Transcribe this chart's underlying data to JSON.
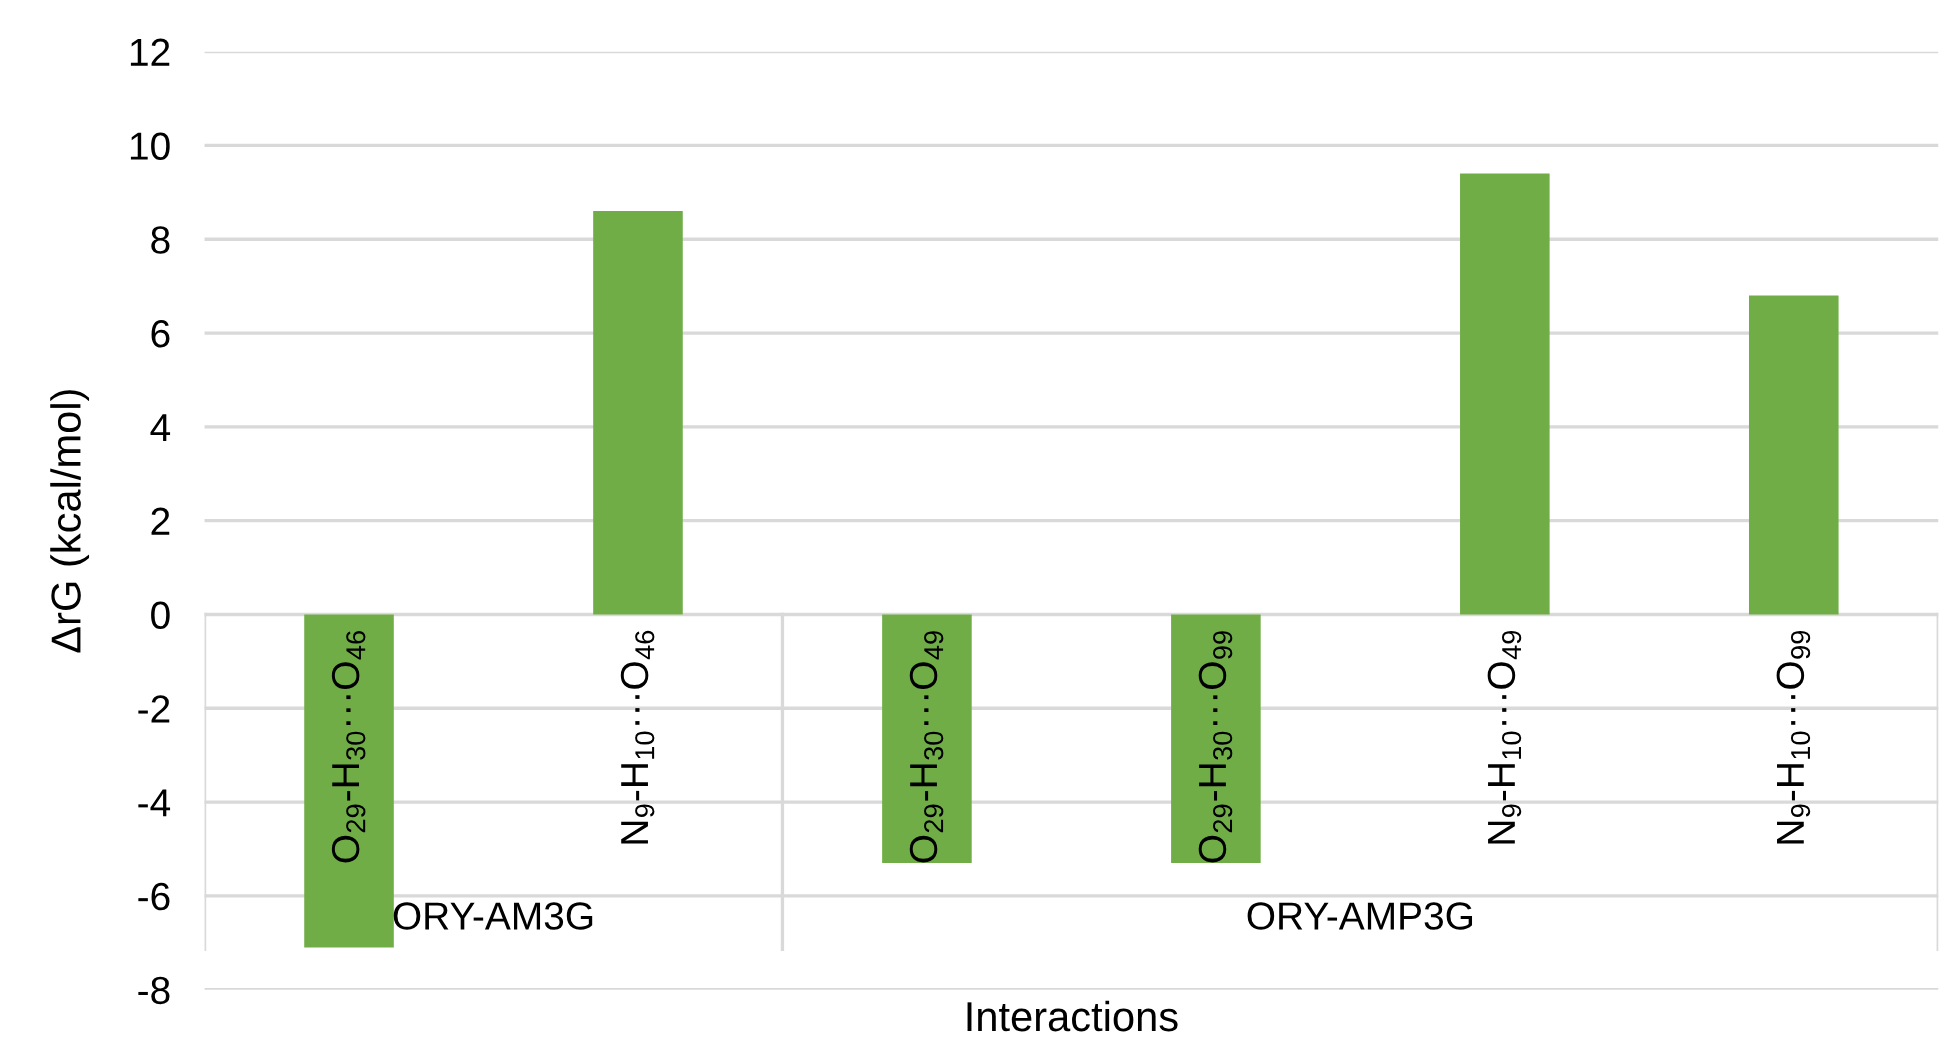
{
  "chart_data": {
    "type": "bar",
    "xlabel": "Interactions",
    "ylabel": "ΔrG (kcal/mol)",
    "categories": [
      "O$_{29}$-H$_{30}$···O$_{46}$",
      "N$_{9}$-H$_{10}$···O$_{46}$",
      "O$_{29}$-H$_{30}$···O$_{49}$",
      "O$_{29}$-H$_{30}$···O$_{99}$",
      "N$_{9}$-H$_{10}$···O$_{49}$",
      "N$_{9}$-H$_{10}$···O$_{99}$"
    ],
    "values": [
      -7.1,
      8.6,
      -5.3,
      -5.3,
      9.4,
      6.8
    ],
    "color": "#70ad47",
    "annotations": [
      "ORY-AM3G",
      "ORY-AMP3G"
    ],
    "ylim": [
      -8,
      12
    ],
    "yticks": [
      -8,
      -6,
      -4,
      -2,
      0,
      2,
      4,
      6,
      8,
      10,
      12
    ],
    "grid": "y",
    "legend": false
  }
}
